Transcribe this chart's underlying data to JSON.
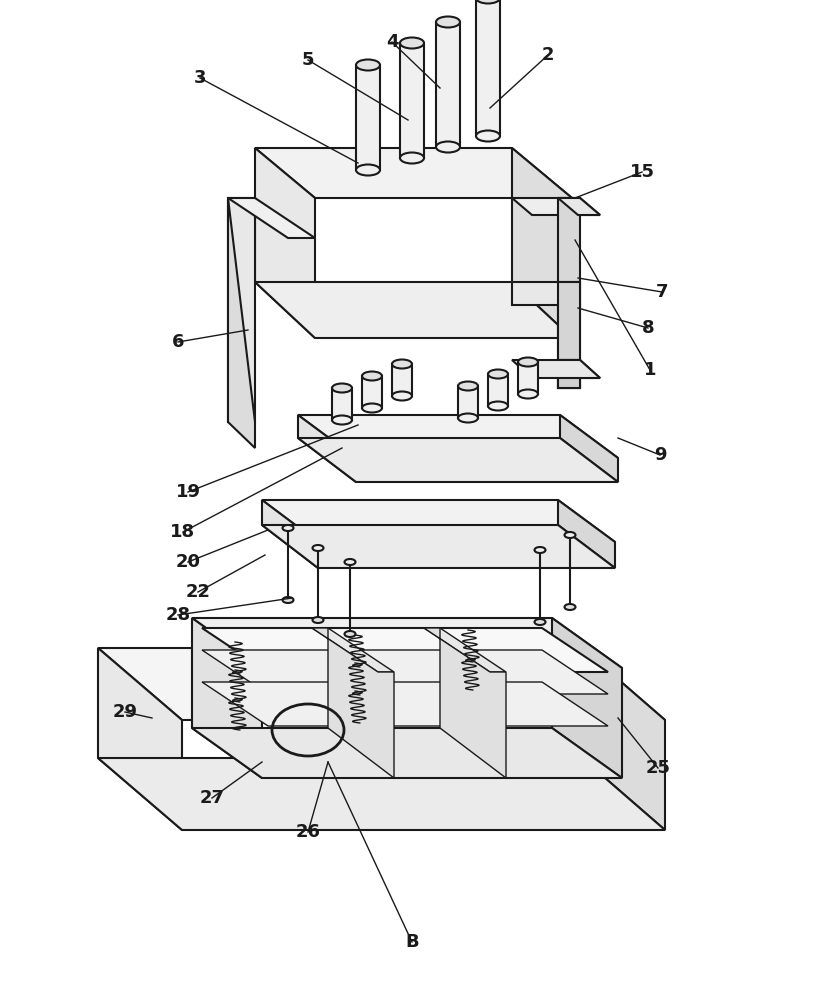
{
  "bg_color": "#ffffff",
  "line_color": "#1a1a1a",
  "line_width": 1.5,
  "labels_info": [
    [
      "1",
      650,
      370,
      575,
      240
    ],
    [
      "2",
      548,
      55,
      490,
      108
    ],
    [
      "3",
      200,
      78,
      358,
      163
    ],
    [
      "4",
      392,
      42,
      440,
      88
    ],
    [
      "5",
      308,
      60,
      408,
      120
    ],
    [
      "6",
      178,
      342,
      248,
      330
    ],
    [
      "7",
      662,
      292,
      578,
      278
    ],
    [
      "8",
      648,
      328,
      578,
      308
    ],
    [
      "9",
      660,
      455,
      618,
      438
    ],
    [
      "15",
      642,
      172,
      575,
      198
    ],
    [
      "18",
      183,
      532,
      342,
      448
    ],
    [
      "19",
      188,
      492,
      358,
      425
    ],
    [
      "20",
      188,
      562,
      268,
      530
    ],
    [
      "22",
      198,
      592,
      265,
      555
    ],
    [
      "25",
      658,
      768,
      618,
      718
    ],
    [
      "26",
      308,
      832,
      328,
      762
    ],
    [
      "27",
      212,
      798,
      262,
      762
    ],
    [
      "28",
      178,
      615,
      292,
      598
    ],
    [
      "29",
      125,
      712,
      152,
      718
    ],
    [
      "B",
      412,
      942,
      328,
      762
    ]
  ]
}
